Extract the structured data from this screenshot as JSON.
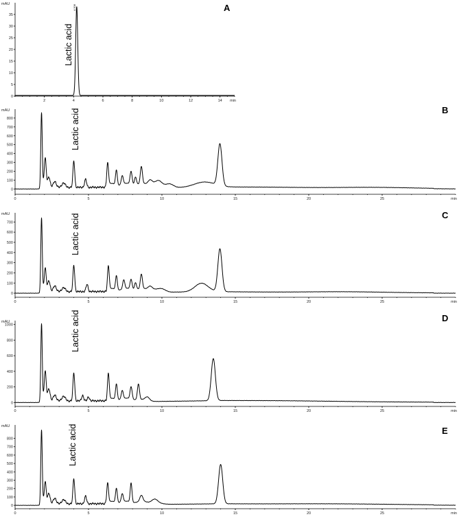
{
  "chart_data": [
    {
      "type": "line",
      "panel": "A",
      "annotation": "Lactic acid",
      "peak_tag": "4.206",
      "xlabel": "min",
      "ylabel": "mAU",
      "xlim": [
        0,
        15
      ],
      "ylim": [
        0,
        40
      ],
      "xticks": [
        2,
        4,
        6,
        8,
        10,
        12,
        14
      ],
      "yticks": [
        0,
        5,
        10,
        15,
        20,
        25,
        30,
        35
      ],
      "baseline": 0.3,
      "peaks": [
        {
          "t": 4.21,
          "h": 38,
          "w": 0.07
        }
      ]
    },
    {
      "type": "line",
      "panel": "B",
      "annotation": "Lactic acid",
      "xlabel": "min",
      "ylabel": "mAU",
      "xlim": [
        0,
        30
      ],
      "ylim": [
        -60,
        900
      ],
      "xticks": [
        0,
        5,
        10,
        15,
        20,
        25
      ],
      "yticks": [
        0,
        100,
        200,
        300,
        400,
        500,
        600,
        700,
        800
      ],
      "humps": [
        {
          "t": 12.9,
          "h": 60,
          "w": 0.7
        },
        {
          "t": 24.5,
          "h": 12,
          "w": 2.5
        },
        {
          "t": 17.0,
          "h": 8,
          "w": 3.0
        }
      ],
      "peaks": [
        {
          "t": 1.8,
          "h": 860,
          "w": 0.05
        },
        {
          "t": 2.05,
          "h": 330,
          "w": 0.07
        },
        {
          "t": 2.3,
          "h": 120,
          "w": 0.08
        },
        {
          "t": 2.7,
          "h": 70,
          "w": 0.1
        },
        {
          "t": 3.3,
          "h": 50,
          "w": 0.12
        },
        {
          "t": 4.0,
          "h": 300,
          "w": 0.06
        },
        {
          "t": 4.8,
          "h": 90,
          "w": 0.07
        },
        {
          "t": 6.3,
          "h": 260,
          "w": 0.06
        },
        {
          "t": 6.9,
          "h": 170,
          "w": 0.06
        },
        {
          "t": 7.3,
          "h": 100,
          "w": 0.07
        },
        {
          "t": 7.9,
          "h": 150,
          "w": 0.07
        },
        {
          "t": 8.2,
          "h": 90,
          "w": 0.07
        },
        {
          "t": 8.6,
          "h": 190,
          "w": 0.07
        },
        {
          "t": 9.2,
          "h": 60,
          "w": 0.15
        },
        {
          "t": 9.8,
          "h": 40,
          "w": 0.2
        },
        {
          "t": 10.5,
          "h": 30,
          "w": 0.3
        },
        {
          "t": 13.95,
          "h": 470,
          "w": 0.14
        }
      ],
      "plateau": {
        "from": 6.2,
        "to": 11.0,
        "h": 55
      }
    },
    {
      "type": "line",
      "panel": "C",
      "annotation": "Lactic acid",
      "xlabel": "min",
      "ylabel": "mAU",
      "xlim": [
        0,
        30
      ],
      "ylim": [
        -40,
        790
      ],
      "xticks": [
        0,
        5,
        10,
        15,
        20,
        25
      ],
      "yticks": [
        0,
        100,
        200,
        300,
        400,
        500,
        600,
        700
      ],
      "humps": [
        {
          "t": 12.7,
          "h": 85,
          "w": 0.45
        },
        {
          "t": 22.5,
          "h": 8,
          "w": 2.5
        }
      ],
      "peaks": [
        {
          "t": 1.8,
          "h": 740,
          "w": 0.05
        },
        {
          "t": 2.05,
          "h": 230,
          "w": 0.07
        },
        {
          "t": 2.3,
          "h": 110,
          "w": 0.08
        },
        {
          "t": 2.7,
          "h": 60,
          "w": 0.1
        },
        {
          "t": 3.3,
          "h": 40,
          "w": 0.12
        },
        {
          "t": 4.0,
          "h": 260,
          "w": 0.06
        },
        {
          "t": 4.9,
          "h": 70,
          "w": 0.07
        },
        {
          "t": 6.35,
          "h": 230,
          "w": 0.06
        },
        {
          "t": 6.9,
          "h": 140,
          "w": 0.06
        },
        {
          "t": 7.4,
          "h": 90,
          "w": 0.07
        },
        {
          "t": 7.9,
          "h": 100,
          "w": 0.07
        },
        {
          "t": 8.2,
          "h": 70,
          "w": 0.07
        },
        {
          "t": 8.6,
          "h": 140,
          "w": 0.07
        },
        {
          "t": 9.2,
          "h": 40,
          "w": 0.15
        },
        {
          "t": 10.0,
          "h": 25,
          "w": 0.25
        },
        {
          "t": 13.95,
          "h": 420,
          "w": 0.14
        }
      ],
      "plateau": {
        "from": 6.2,
        "to": 10.5,
        "h": 40
      }
    },
    {
      "type": "line",
      "panel": "D",
      "annotation": "Lactic acid",
      "xlabel": "min",
      "ylabel": "mAU",
      "xlim": [
        0,
        30
      ],
      "ylim": [
        -50,
        1050
      ],
      "xticks": [
        0,
        5,
        10,
        15,
        20,
        25
      ],
      "yticks": [
        0,
        200,
        400,
        600,
        800,
        1000
      ],
      "humps": [
        {
          "t": 18.0,
          "h": 10,
          "w": 4.0
        }
      ],
      "peaks": [
        {
          "t": 1.8,
          "h": 1010,
          "w": 0.05
        },
        {
          "t": 2.05,
          "h": 380,
          "w": 0.07
        },
        {
          "t": 2.3,
          "h": 160,
          "w": 0.08
        },
        {
          "t": 2.7,
          "h": 80,
          "w": 0.1
        },
        {
          "t": 3.3,
          "h": 60,
          "w": 0.12
        },
        {
          "t": 4.0,
          "h": 360,
          "w": 0.06
        },
        {
          "t": 4.6,
          "h": 70,
          "w": 0.07
        },
        {
          "t": 5.0,
          "h": 50,
          "w": 0.07
        },
        {
          "t": 6.35,
          "h": 330,
          "w": 0.06
        },
        {
          "t": 6.9,
          "h": 200,
          "w": 0.06
        },
        {
          "t": 7.3,
          "h": 110,
          "w": 0.07
        },
        {
          "t": 7.9,
          "h": 160,
          "w": 0.07
        },
        {
          "t": 8.4,
          "h": 200,
          "w": 0.07
        },
        {
          "t": 9.0,
          "h": 50,
          "w": 0.15
        },
        {
          "t": 13.5,
          "h": 540,
          "w": 0.14
        }
      ],
      "plateau": {
        "from": 6.2,
        "to": 9.5,
        "h": 45
      }
    },
    {
      "type": "line",
      "panel": "E",
      "annotation": "Lactic acid",
      "xlabel": "min",
      "ylabel": "mAU",
      "xlim": [
        0,
        30
      ],
      "ylim": [
        -40,
        960
      ],
      "xticks": [
        0,
        5,
        10,
        15,
        20,
        25
      ],
      "yticks": [
        0,
        100,
        200,
        300,
        400,
        500,
        600,
        700,
        800
      ],
      "humps": [
        {
          "t": 22.0,
          "h": 10,
          "w": 4.0
        }
      ],
      "peaks": [
        {
          "t": 1.8,
          "h": 900,
          "w": 0.05
        },
        {
          "t": 2.05,
          "h": 260,
          "w": 0.07
        },
        {
          "t": 2.3,
          "h": 130,
          "w": 0.08
        },
        {
          "t": 2.7,
          "h": 70,
          "w": 0.1
        },
        {
          "t": 3.3,
          "h": 50,
          "w": 0.12
        },
        {
          "t": 4.0,
          "h": 300,
          "w": 0.06
        },
        {
          "t": 4.8,
          "h": 90,
          "w": 0.07
        },
        {
          "t": 6.3,
          "h": 240,
          "w": 0.06
        },
        {
          "t": 6.9,
          "h": 170,
          "w": 0.06
        },
        {
          "t": 7.3,
          "h": 100,
          "w": 0.07
        },
        {
          "t": 7.9,
          "h": 230,
          "w": 0.06
        },
        {
          "t": 8.6,
          "h": 70,
          "w": 0.1
        },
        {
          "t": 9.5,
          "h": 40,
          "w": 0.2
        },
        {
          "t": 14.0,
          "h": 470,
          "w": 0.14
        }
      ],
      "plateau": {
        "from": 6.2,
        "to": 10.5,
        "h": 40
      }
    }
  ]
}
